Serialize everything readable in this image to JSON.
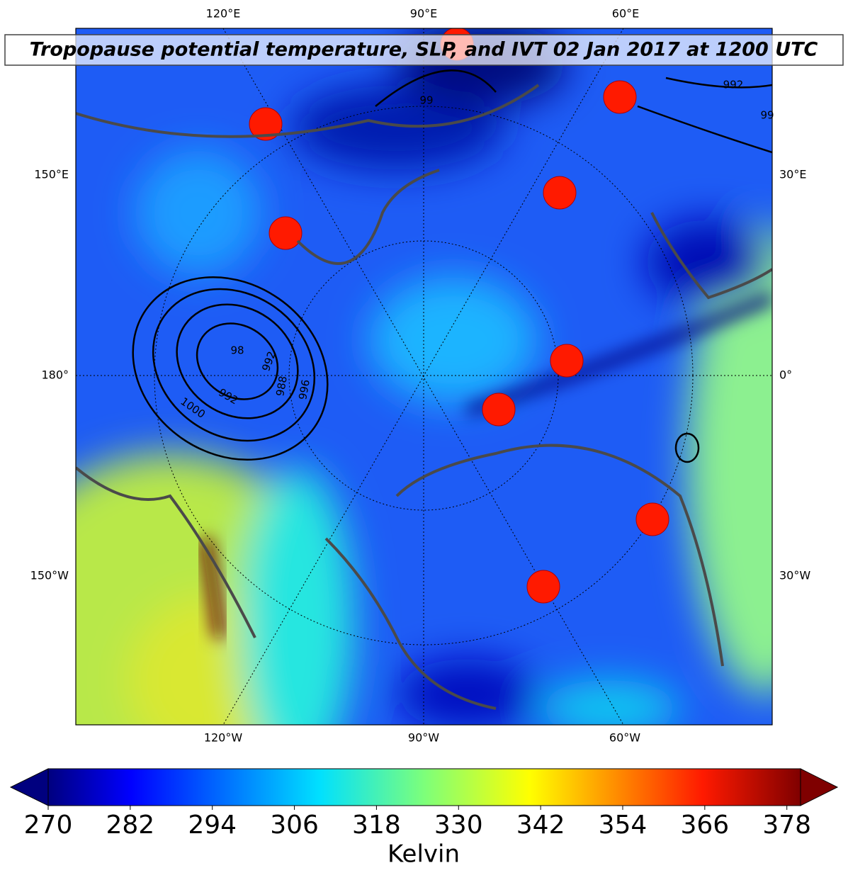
{
  "title": "Tropopause potential temperature, SLP, and IVT 02 Jan 2017 at 1200 UTC",
  "map": {
    "top_labels": [
      "120°E",
      "90°E",
      "60°E"
    ],
    "bottom_labels": [
      "120°W",
      "90°W",
      "60°W"
    ],
    "left_labels": [
      "150°E",
      "180°",
      "150°W"
    ],
    "right_labels": [
      "30°E",
      "0°",
      "30°W"
    ],
    "contour_labels": [
      "992",
      "99",
      "98",
      "988",
      "996",
      "992",
      "1000",
      "992",
      "99"
    ]
  },
  "colorbar": {
    "label": "Kelvin",
    "lim": [
      270,
      380
    ],
    "ticks": [
      270,
      282,
      294,
      306,
      318,
      330,
      342,
      354,
      366,
      378
    ]
  }
}
